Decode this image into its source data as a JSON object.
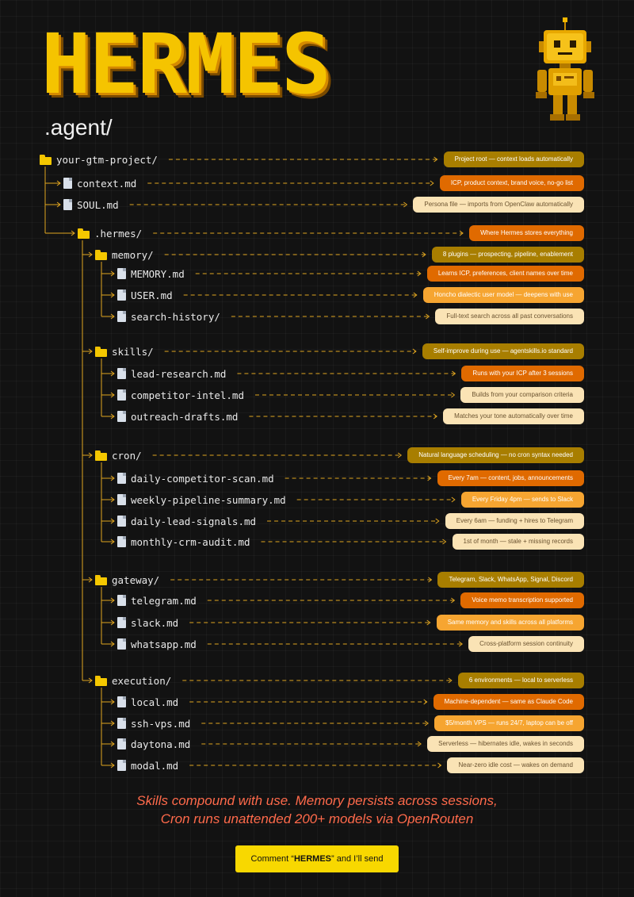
{
  "header": {
    "title": "HERMES",
    "subtitle": ".agent/"
  },
  "tree": [
    {
      "name": "your-gtm-project/",
      "type": "folder",
      "depth": 0,
      "note": "Project root — context loads automatically",
      "note_color": "olive"
    },
    {
      "name": "context.md",
      "type": "file",
      "depth": 1,
      "note": "ICP, product context, brand voice, no-go list",
      "note_color": "orange"
    },
    {
      "name": "SOUL.md",
      "type": "file",
      "depth": 1,
      "note": "Persona file — imports from OpenClaw automatically",
      "note_color": "cream"
    },
    {
      "name": ".hermes/",
      "type": "folder",
      "depth": 2,
      "note": "Where Hermes stores everything",
      "note_color": "orange"
    },
    {
      "name": "memory/",
      "type": "folder",
      "depth": 3,
      "note": "8 plugins — prospecting, pipeline, enablement",
      "note_color": "olive"
    },
    {
      "name": "MEMORY.md",
      "type": "file",
      "depth": 4,
      "note": "Learns ICP, preferences, client names over time",
      "note_color": "orange"
    },
    {
      "name": "USER.md",
      "type": "file",
      "depth": 4,
      "note": "Honcho dialectic user model — deepens with use",
      "note_color": "amber"
    },
    {
      "name": "search-history/",
      "type": "file",
      "depth": 4,
      "note": "Full-text search across all past conversations",
      "note_color": "cream"
    },
    {
      "name": "skills/",
      "type": "folder",
      "depth": 3,
      "note": "Self-improve during use — agentskills.io standard",
      "note_color": "olive"
    },
    {
      "name": "lead-research.md",
      "type": "file",
      "depth": 4,
      "note": "Runs with your ICP after 3 sessions",
      "note_color": "orange"
    },
    {
      "name": "competitor-intel.md",
      "type": "file",
      "depth": 4,
      "note": "Builds from your comparison criteria",
      "note_color": "cream"
    },
    {
      "name": "outreach-drafts.md",
      "type": "file",
      "depth": 4,
      "note": "Matches your tone automatically over time",
      "note_color": "cream"
    },
    {
      "name": "cron/",
      "type": "folder",
      "depth": 3,
      "note": "Natural language scheduling — no cron syntax needed",
      "note_color": "olive"
    },
    {
      "name": "daily-competitor-scan.md",
      "type": "file",
      "depth": 4,
      "note": "Every 7am — content, jobs, announcements",
      "note_color": "orange"
    },
    {
      "name": "weekly-pipeline-summary.md",
      "type": "file",
      "depth": 4,
      "note": "Every Friday 4pm — sends to Slack",
      "note_color": "amber"
    },
    {
      "name": "daily-lead-signals.md",
      "type": "file",
      "depth": 4,
      "note": "Every 6am — funding + hires to Telegram",
      "note_color": "cream"
    },
    {
      "name": "monthly-crm-audit.md",
      "type": "file",
      "depth": 4,
      "note": "1st of month — stale + missing records",
      "note_color": "cream"
    },
    {
      "name": "gateway/",
      "type": "folder",
      "depth": 3,
      "note": "Telegram, Slack, WhatsApp, Signal, Discord",
      "note_color": "olive"
    },
    {
      "name": "telegram.md",
      "type": "file",
      "depth": 4,
      "note": "Voice memo transcription supported",
      "note_color": "orange"
    },
    {
      "name": "slack.md",
      "type": "file",
      "depth": 4,
      "note": "Same memory and skills across all platforms",
      "note_color": "amber"
    },
    {
      "name": "whatsapp.md",
      "type": "file",
      "depth": 4,
      "note": "Cross-platform session continuity",
      "note_color": "cream"
    },
    {
      "name": "execution/",
      "type": "folder",
      "depth": 3,
      "note": "6 environments — local to serverless",
      "note_color": "olive"
    },
    {
      "name": "local.md",
      "type": "file",
      "depth": 4,
      "note": "Machine-dependent — same as Claude Code",
      "note_color": "orange"
    },
    {
      "name": "ssh-vps.md",
      "type": "file",
      "depth": 4,
      "note": "$5/month VPS — runs 24/7, laptop can be off",
      "note_color": "amber"
    },
    {
      "name": "daytona.md",
      "type": "file",
      "depth": 4,
      "note": "Serverless — hibernates idle, wakes in seconds",
      "note_color": "cream"
    },
    {
      "name": "modal.md",
      "type": "file",
      "depth": 4,
      "note": "Near-zero idle cost — wakes on demand",
      "note_color": "cream"
    }
  ],
  "tagline": {
    "line1": "Skills compound with use. Memory persists across sessions,",
    "line2": "Cron runs unattended 200+ models via OpenRouten"
  },
  "cta": {
    "prefix": "Comment “",
    "keyword": "HERMES",
    "suffix": "” and I’ll send"
  },
  "colors": {
    "accent": "#f5c400",
    "line": "#e0a520",
    "olive": "#a87e00",
    "orange": "#e06a00",
    "amber": "#f6a531",
    "cream": "#fae3b5",
    "tagline": "#ff6a4b",
    "cta": "#f8d800"
  }
}
